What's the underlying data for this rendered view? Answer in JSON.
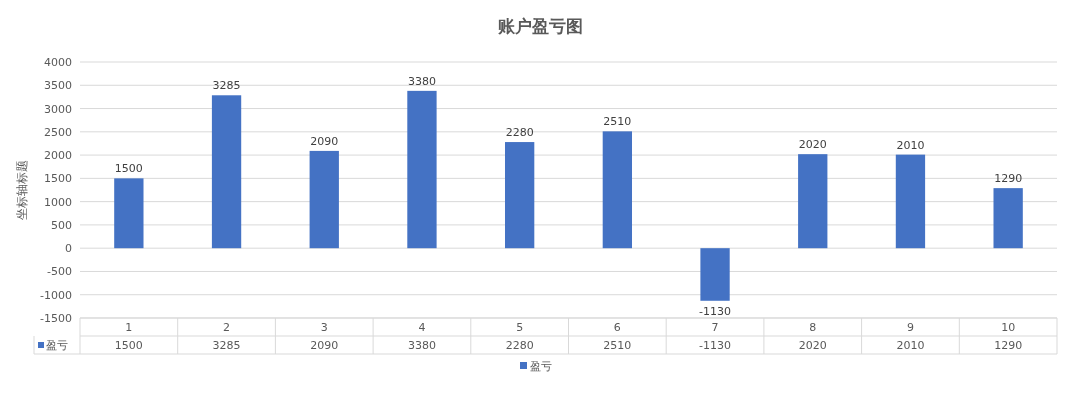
{
  "chart_data": {
    "type": "bar",
    "title": "账户盈亏图",
    "ylabel": "坐标轴标题",
    "categories": [
      "1",
      "2",
      "3",
      "4",
      "5",
      "6",
      "7",
      "8",
      "9",
      "10"
    ],
    "series": [
      {
        "name": "盈亏",
        "color": "#4472c4",
        "values": [
          1500,
          3285,
          2090,
          3380,
          2280,
          2510,
          -1130,
          2020,
          2010,
          1290
        ],
        "value_labels": [
          "1500",
          "3285",
          "2090",
          "3380",
          "2280",
          "2510",
          "-1130",
          "2020",
          "2010",
          "1290"
        ]
      }
    ],
    "ylim": [
      -1500,
      4000
    ],
    "yticks": [
      -1500,
      -1000,
      -500,
      0,
      500,
      1000,
      1500,
      2000,
      2500,
      3000,
      3500,
      4000
    ],
    "annotations": [
      "1500",
      "3285",
      "2090",
      "3380",
      "2280",
      "2510",
      "-1130",
      "2020",
      "2010",
      "1290"
    ],
    "grid": "y",
    "legend": "bottom"
  }
}
